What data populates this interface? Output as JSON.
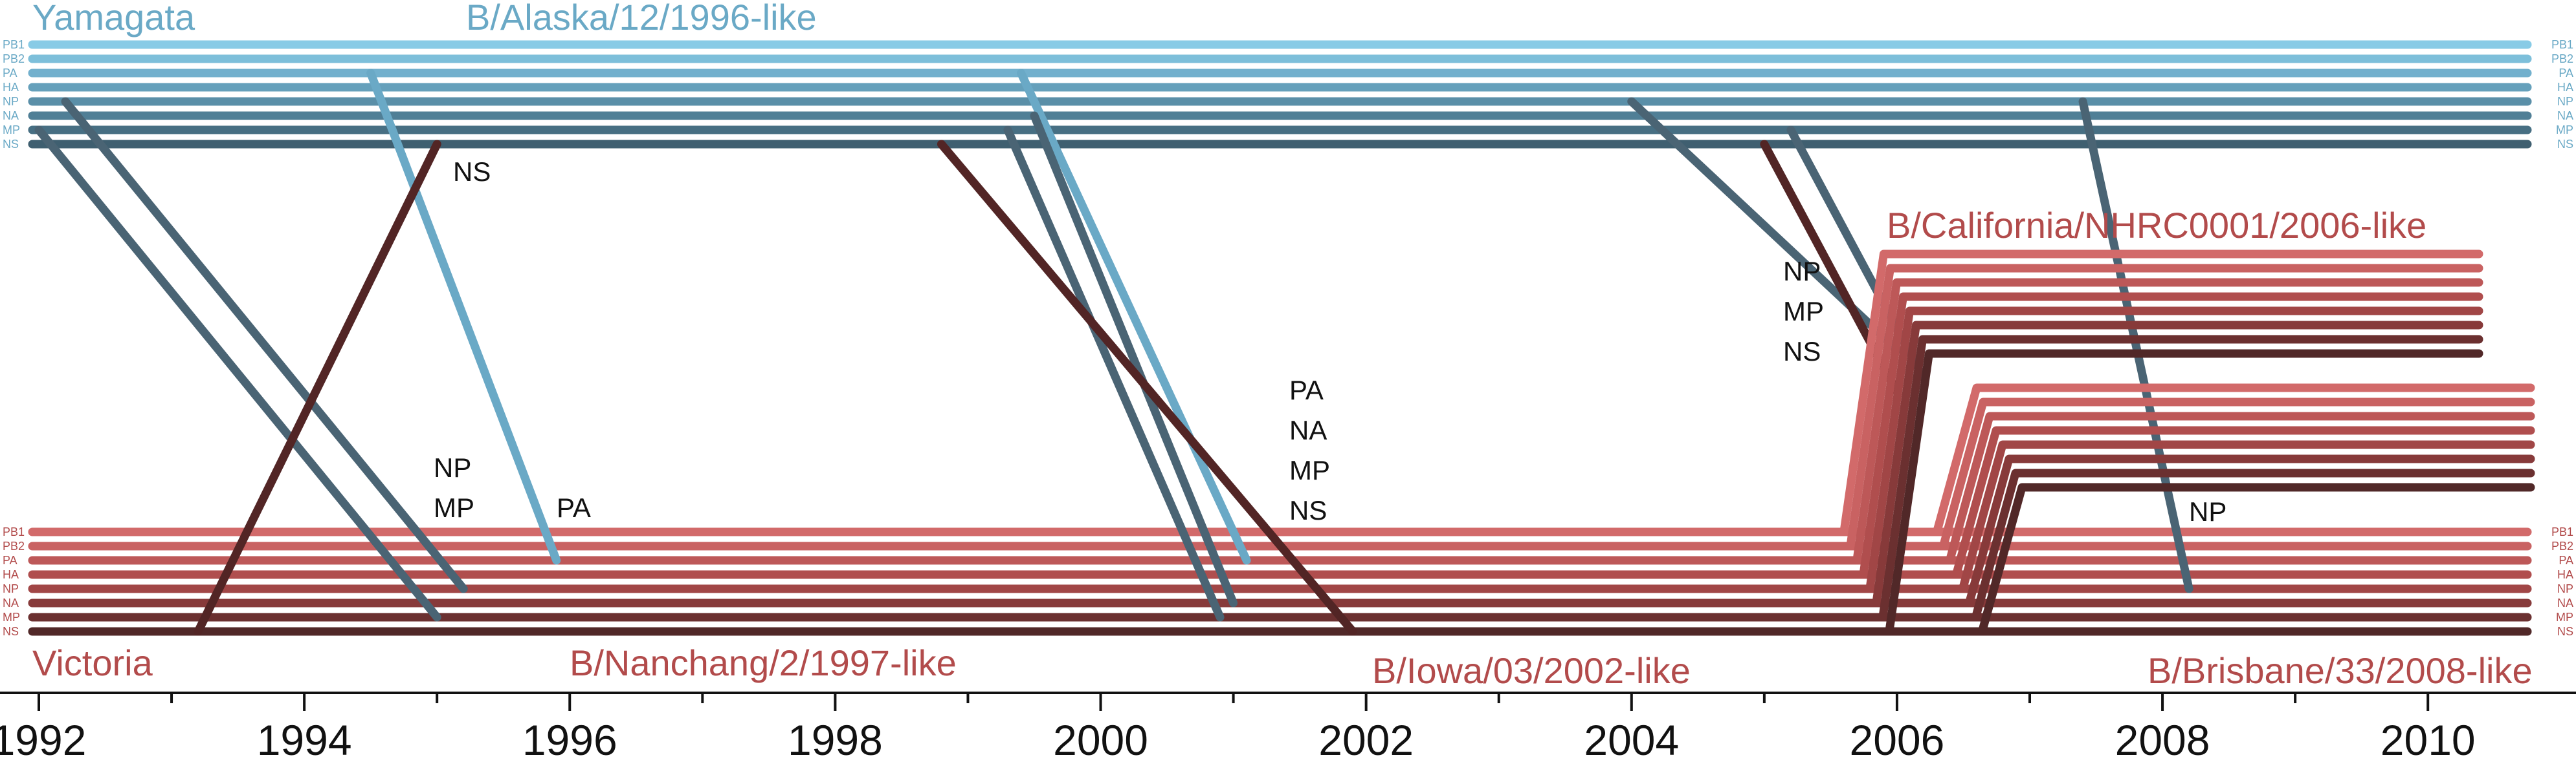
{
  "colors": {
    "yamagata": "#7fc7e6",
    "yamagata_dark": "#4a6474",
    "victoria": "#cc5f5f",
    "victoria_dark": "#4f2b2b",
    "ancestor_dark": "#522525",
    "text": "#111111"
  },
  "lineages": {
    "yamagata": "Yamagata",
    "victoria": "Victoria",
    "alaska": "B/Alaska/12/1996-like",
    "california": "B/California/NHRC0001/2006-like",
    "nanchang": "B/Nanchang/2/1997-like",
    "iowa": "B/Iowa/03/2002-like",
    "brisbane": "B/Brisbane/33/2008-like"
  },
  "segment_labels": [
    "PB1",
    "PB2",
    "PA",
    "HA",
    "NP",
    "NA",
    "MP",
    "NS"
  ],
  "reassortment_labels": {
    "ns_1995": [
      "NS"
    ],
    "np_mp_1995": [
      "NP",
      "MP"
    ],
    "pa_1996": [
      "PA"
    ],
    "pa_na_mp_ns_2001": [
      "PA",
      "NA",
      "MP",
      "NS"
    ],
    "np_mp_ns_2005": [
      "NP",
      "MP",
      "NS"
    ],
    "np_2008": [
      "NP"
    ]
  },
  "axis": {
    "min_year": 1991.7,
    "max_year": 2010.85,
    "tick_labels": [
      "1992",
      "1994",
      "1996",
      "1998",
      "2000",
      "2002",
      "2004",
      "2006",
      "2008",
      "2010"
    ],
    "tick_years": [
      1992,
      1994,
      1996,
      1998,
      2000,
      2002,
      2004,
      2006,
      2008,
      2010
    ]
  },
  "chart_data": {
    "type": "reassortment-timeline",
    "segments": [
      "PB1",
      "PB2",
      "PA",
      "HA",
      "NP",
      "NA",
      "MP",
      "NS"
    ],
    "events": [
      {
        "year": 1995,
        "lineage": "Yamagata",
        "segments": [
          "NS"
        ],
        "from": "Victoria"
      },
      {
        "year": 1995,
        "lineage": "Victoria",
        "segments": [
          "NP",
          "MP"
        ],
        "from": "Yamagata"
      },
      {
        "year": 1996,
        "lineage": "Victoria",
        "segments": [
          "PA"
        ],
        "from": "Yamagata"
      },
      {
        "year": 2001,
        "lineage": "Victoria",
        "segments": [
          "PA",
          "NA",
          "MP",
          "NS"
        ],
        "from": "Yamagata"
      },
      {
        "year": 2005,
        "lineage": "Victoria",
        "segments": [
          "NP",
          "MP",
          "NS"
        ],
        "from": "Yamagata"
      },
      {
        "year": 2008,
        "lineage": "Victoria",
        "segments": [
          "NP"
        ],
        "from": "Yamagata"
      }
    ]
  }
}
